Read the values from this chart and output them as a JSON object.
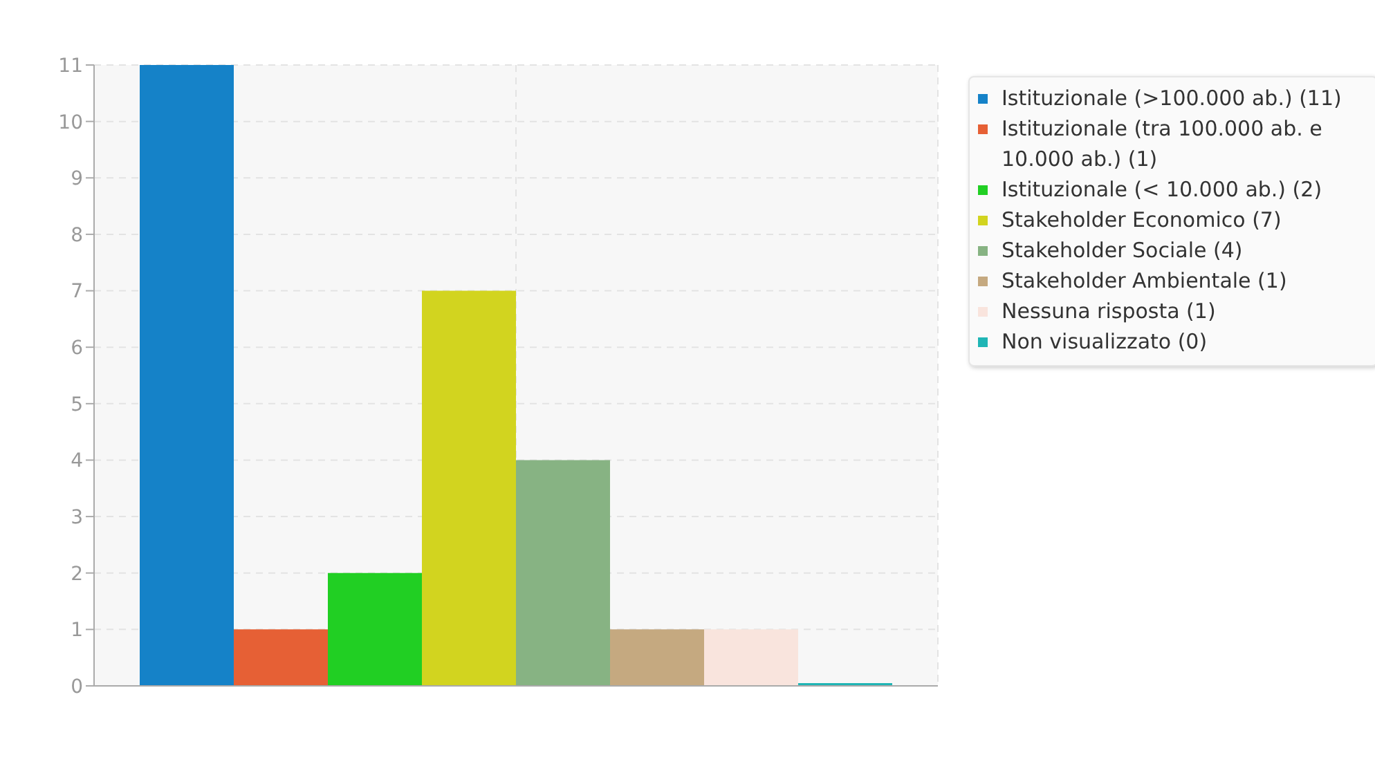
{
  "chart_data": {
    "type": "bar",
    "categories": [
      null
    ],
    "series": [
      {
        "name": "Istituzionale (>100.000 ab.) (11)",
        "color": "#1582c8",
        "values": [
          11
        ]
      },
      {
        "name": "Istituzionale (tra 100.000 ab. e 10.000 ab.) (1)",
        "color": "#e66035",
        "values": [
          1
        ]
      },
      {
        "name": "Istituzionale (< 10.000 ab.) (2)",
        "color": "#21cf23",
        "values": [
          2
        ]
      },
      {
        "name": "Stakeholder Economico (7)",
        "color": "#d2d41f",
        "values": [
          7
        ]
      },
      {
        "name": "Stakeholder Sociale (4)",
        "color": "#87b383",
        "values": [
          4
        ]
      },
      {
        "name": "Stakeholder Ambientale (1)",
        "color": "#c5a980",
        "values": [
          1
        ]
      },
      {
        "name": "Nessuna risposta (1)",
        "color": "#f9e4dd",
        "values": [
          1
        ]
      },
      {
        "name": "Non visualizzato (0)",
        "color": "#1fb5b5",
        "values": [
          0
        ]
      }
    ],
    "ylim": [
      0,
      11
    ],
    "yticks": [
      0,
      1,
      2,
      3,
      4,
      5,
      6,
      7,
      8,
      9,
      10,
      11
    ],
    "grid": true,
    "legend": "right"
  }
}
